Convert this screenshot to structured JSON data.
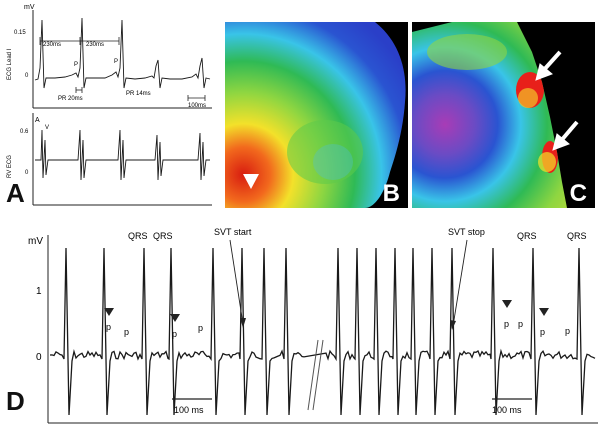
{
  "panel_a": {
    "letter": "A",
    "inner_label": "A",
    "units": "mV",
    "y_tick_top": "0.15",
    "y_tick_zero": "0",
    "lead1_label": "ECG Lead I",
    "rv_label": "RV ECG",
    "interval_1": "230ms",
    "interval_2": "230ms",
    "p_label_1": "P",
    "p_label_2": "P",
    "v_label": "V",
    "pr_1": "PR 20ms",
    "pr_2": "PR 14ms",
    "scale_bar": "100ms",
    "rv_tick_top": "0.6",
    "rv_tick_zero": "0"
  },
  "panel_b": {
    "letter": "B"
  },
  "panel_c": {
    "letter": "C"
  },
  "panel_d": {
    "letter": "D",
    "units": "mV",
    "y_tick_1": "1",
    "y_tick_0": "0",
    "qrs_label": "QRS",
    "p_label": "p",
    "svt_start": "SVT start",
    "svt_stop": "SVT stop",
    "scale_bar": "100 ms"
  },
  "colors": {
    "trace": "#1a1a1a",
    "map_red": "#e8201a",
    "map_yellow": "#f2e628",
    "map_green": "#3cbf50",
    "map_cyan": "#39c4e8",
    "map_blue": "#2a3fc8",
    "map_purple": "#b03bb8"
  }
}
